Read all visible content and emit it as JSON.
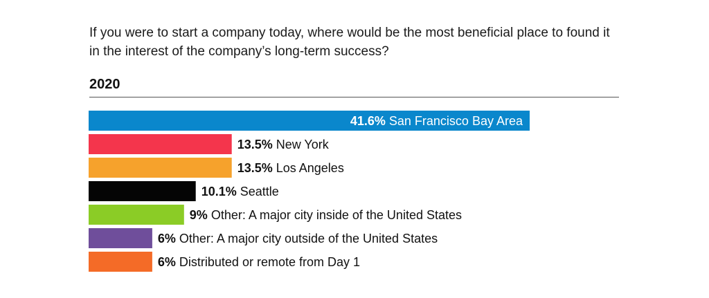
{
  "question": "If you were to start a company today, where would be the most beneficial place to found it in the interest of the company’s long-term success?",
  "year": "2020",
  "chart_data": {
    "type": "bar",
    "orientation": "horizontal",
    "title": "If you were to start a company today, where would be the most beneficial place to found it in the interest of the company’s long-term success?",
    "subtitle": "2020",
    "categories": [
      "San Francisco Bay Area",
      "New York",
      "Los Angeles",
      "Seattle",
      "Other: A major city inside of the United States",
      "Other: A major city outside of the United States",
      "Distributed or remote from Day 1"
    ],
    "values": [
      41.6,
      13.5,
      13.5,
      10.1,
      9,
      6,
      6
    ],
    "value_labels": [
      "41.6%",
      "13.5%",
      "13.5%",
      "10.1%",
      "9%",
      "6%",
      "6%"
    ],
    "colors": [
      "#0a87cc",
      "#f4354c",
      "#f6a22c",
      "#050505",
      "#8bcc26",
      "#6f4e9b",
      "#f46b27"
    ],
    "label_colors": [
      "#ffffff",
      "#111111",
      "#111111",
      "#111111",
      "#111111",
      "#111111",
      "#111111"
    ],
    "label_inside": [
      true,
      false,
      false,
      false,
      false,
      false,
      false
    ],
    "xlim": [
      0,
      41.6
    ],
    "xlabel": "",
    "ylabel": "",
    "grid": false,
    "legend": "none"
  }
}
